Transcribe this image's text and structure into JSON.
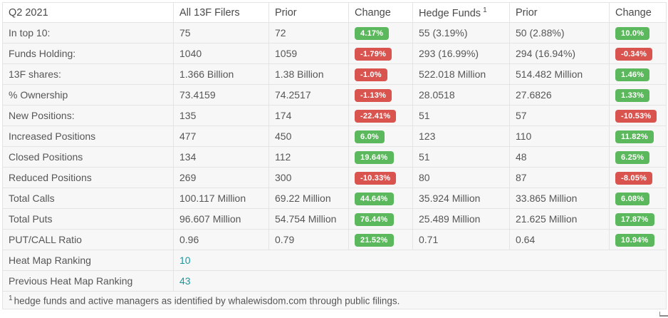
{
  "colors": {
    "positive_badge": "#5cb85c",
    "negative_badge": "#d9534f",
    "link": "#1899a2",
    "row_background": "#f7f7f7"
  },
  "table": {
    "headers": [
      "Q2 2021",
      "All 13F Filers",
      "Prior",
      "Change",
      "Hedge Funds",
      "Prior",
      "Change"
    ],
    "footnote_mark": "1",
    "rows": [
      {
        "label": "In top 10:",
        "all_value": "75",
        "all_prior": "72",
        "all_change": "4.17%",
        "hf_value": "55 (3.19%)",
        "hf_prior": "50 (2.88%)",
        "hf_change": "10.0%"
      },
      {
        "label": "Funds Holding:",
        "all_value": "1040",
        "all_prior": "1059",
        "all_change": "-1.79%",
        "hf_value": "293 (16.99%)",
        "hf_prior": "294 (16.94%)",
        "hf_change": "-0.34%"
      },
      {
        "label": "13F shares:",
        "all_value": "1.366 Billion",
        "all_prior": "1.38 Billion",
        "all_change": "-1.0%",
        "hf_value": "522.018 Million",
        "hf_prior": "514.482 Million",
        "hf_change": "1.46%"
      },
      {
        "label": "% Ownership",
        "all_value": "73.4159",
        "all_prior": "74.2517",
        "all_change": "-1.13%",
        "hf_value": "28.0518",
        "hf_prior": "27.6826",
        "hf_change": "1.33%"
      },
      {
        "label": "New Positions:",
        "all_value": "135",
        "all_prior": "174",
        "all_change": "-22.41%",
        "hf_value": "51",
        "hf_prior": "57",
        "hf_change": "-10.53%"
      },
      {
        "label": "Increased Positions",
        "all_value": "477",
        "all_prior": "450",
        "all_change": "6.0%",
        "hf_value": "123",
        "hf_prior": "110",
        "hf_change": "11.82%"
      },
      {
        "label": "Closed Positions",
        "all_value": "134",
        "all_prior": "112",
        "all_change": "19.64%",
        "hf_value": "51",
        "hf_prior": "48",
        "hf_change": "6.25%"
      },
      {
        "label": "Reduced Positions",
        "all_value": "269",
        "all_prior": "300",
        "all_change": "-10.33%",
        "hf_value": "80",
        "hf_prior": "87",
        "hf_change": "-8.05%"
      },
      {
        "label": "Total Calls",
        "all_value": "100.117 Million",
        "all_prior": "69.22 Million",
        "all_change": "44.64%",
        "hf_value": "35.924 Million",
        "hf_prior": "33.865 Million",
        "hf_change": "6.08%"
      },
      {
        "label": "Total Puts",
        "all_value": "96.607 Million",
        "all_prior": "54.754 Million",
        "all_change": "76.44%",
        "hf_value": "25.489 Million",
        "hf_prior": "21.625 Million",
        "hf_change": "17.87%"
      },
      {
        "label": "PUT/CALL Ratio",
        "all_value": "0.96",
        "all_prior": "0.79",
        "all_change": "21.52%",
        "hf_value": "0.71",
        "hf_prior": "0.64",
        "hf_change": "10.94%"
      }
    ],
    "ranking_rows": [
      {
        "label": "Heat Map Ranking",
        "value": "10"
      },
      {
        "label": "Previous Heat Map Ranking",
        "value": "43"
      }
    ],
    "footnote_text": "hedge funds and active managers as identified by whalewisdom.com through public filings."
  }
}
